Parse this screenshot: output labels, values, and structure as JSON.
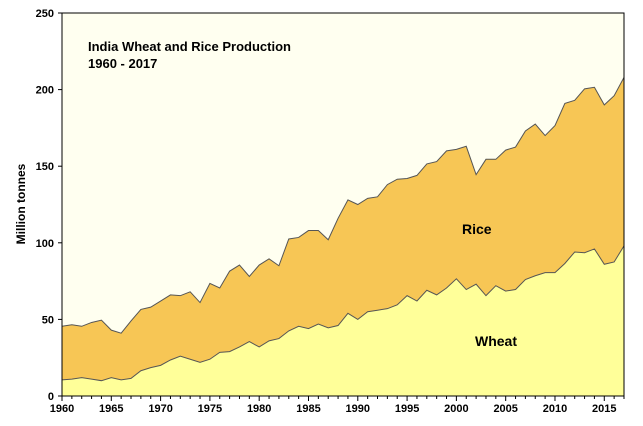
{
  "chart_data": {
    "type": "area",
    "stacked": true,
    "title": "India Wheat and Rice  Production",
    "subtitle": "1960 - 2017",
    "xlabel": "",
    "ylabel": "Million tonnes",
    "xlim": [
      1960,
      2017
    ],
    "ylim": [
      0,
      250
    ],
    "xticks": [
      1960,
      1965,
      1970,
      1975,
      1980,
      1985,
      1990,
      1995,
      2000,
      2005,
      2010,
      2015
    ],
    "yticks": [
      0,
      50,
      100,
      150,
      200,
      250
    ],
    "grid": false,
    "legend": "none",
    "x": [
      1960,
      1961,
      1962,
      1963,
      1964,
      1965,
      1966,
      1967,
      1968,
      1969,
      1970,
      1971,
      1972,
      1973,
      1974,
      1975,
      1976,
      1977,
      1978,
      1979,
      1980,
      1981,
      1982,
      1983,
      1984,
      1985,
      1986,
      1987,
      1988,
      1989,
      1990,
      1991,
      1992,
      1993,
      1994,
      1995,
      1996,
      1997,
      1998,
      1999,
      2000,
      2001,
      2002,
      2003,
      2004,
      2005,
      2006,
      2007,
      2008,
      2009,
      2010,
      2011,
      2012,
      2013,
      2014,
      2015,
      2016,
      2017
    ],
    "series": [
      {
        "name": "Wheat",
        "color": "#FFFF99",
        "values": [
          10.5,
          11,
          12,
          11,
          10,
          12,
          10.5,
          11.5,
          16.5,
          18.5,
          20,
          23.5,
          26,
          24,
          22,
          24,
          28.5,
          29,
          32,
          35.5,
          32,
          36,
          37.5,
          42.5,
          45.5,
          44,
          47,
          44.5,
          46,
          54,
          50,
          55,
          56,
          57,
          59.5,
          65.5,
          62,
          69,
          66,
          70.5,
          76.5,
          69.5,
          73,
          65.5,
          72,
          68.5,
          69.5,
          76,
          78.5,
          80.5,
          80.5,
          86.5,
          94,
          93.5,
          96,
          86,
          87.5,
          98
        ]
      },
      {
        "name": "Rice",
        "color": "#F7C655",
        "values": [
          35,
          35.5,
          33.5,
          37,
          39.5,
          31,
          30.5,
          37.5,
          40,
          39.5,
          42,
          42.5,
          39.5,
          44,
          39,
          49.5,
          42,
          52.5,
          53.5,
          42.5,
          53.5,
          53.5,
          47.5,
          60,
          58,
          64,
          61,
          57.5,
          70,
          74,
          75,
          74,
          74,
          81,
          82,
          76.5,
          82,
          82.5,
          87,
          89.5,
          84.5,
          93.5,
          71.5,
          89,
          82.5,
          92,
          93,
          97,
          99,
          89.5,
          96,
          104.5,
          99,
          107,
          105.5,
          104,
          108.5,
          110
        ]
      }
    ],
    "annotations": [
      "Rice",
      "Wheat"
    ]
  },
  "colors": {
    "plot_background": "#FFFFF0",
    "wheat_fill": "#FFFF99",
    "rice_fill": "#F7C655",
    "outline": "#555555"
  }
}
